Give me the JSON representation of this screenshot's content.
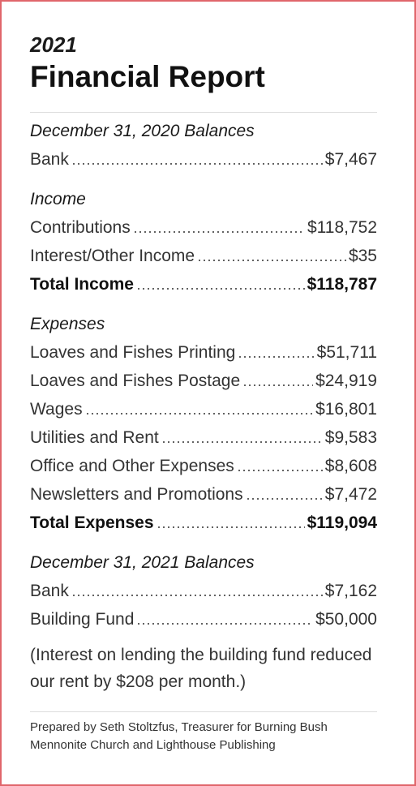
{
  "header": {
    "year": "2021",
    "title": "Financial Report"
  },
  "sections": [
    {
      "heading": "December 31, 2020 Balances",
      "rows": [
        {
          "label": "Bank",
          "amount": "$7,467"
        }
      ]
    },
    {
      "heading": "Income",
      "rows": [
        {
          "label": "Contributions",
          "amount": "$118,752"
        },
        {
          "label": "Interest/Other Income",
          "amount": "$35"
        }
      ],
      "total": {
        "label": "Total Income",
        "amount": "$118,787"
      }
    },
    {
      "heading": "Expenses",
      "rows": [
        {
          "label": "Loaves and Fishes Printing",
          "amount": "$51,711"
        },
        {
          "label": "Loaves and Fishes Postage",
          "amount": "$24,919"
        },
        {
          "label": "Wages",
          "amount": "$16,801"
        },
        {
          "label": "Utilities and Rent",
          "amount": "$9,583"
        },
        {
          "label": "Office and Other Expenses",
          "amount": "$8,608"
        },
        {
          "label": "Newsletters and Promotions",
          "amount": "$7,472"
        }
      ],
      "total": {
        "label": "Total Expenses",
        "amount": "$119,094"
      }
    },
    {
      "heading": "December 31, 2021 Balances",
      "rows": [
        {
          "label": "Bank",
          "amount": "$7,162"
        },
        {
          "label": "Building Fund",
          "amount": "$50,000"
        }
      ]
    }
  ],
  "note": "(Interest on lending the building fund reduced our rent by $208 per month.)",
  "footer": "Prepared by Seth Stoltzfus, Treasurer for Burning Bush Mennonite Church and Lighthouse Publishing"
}
